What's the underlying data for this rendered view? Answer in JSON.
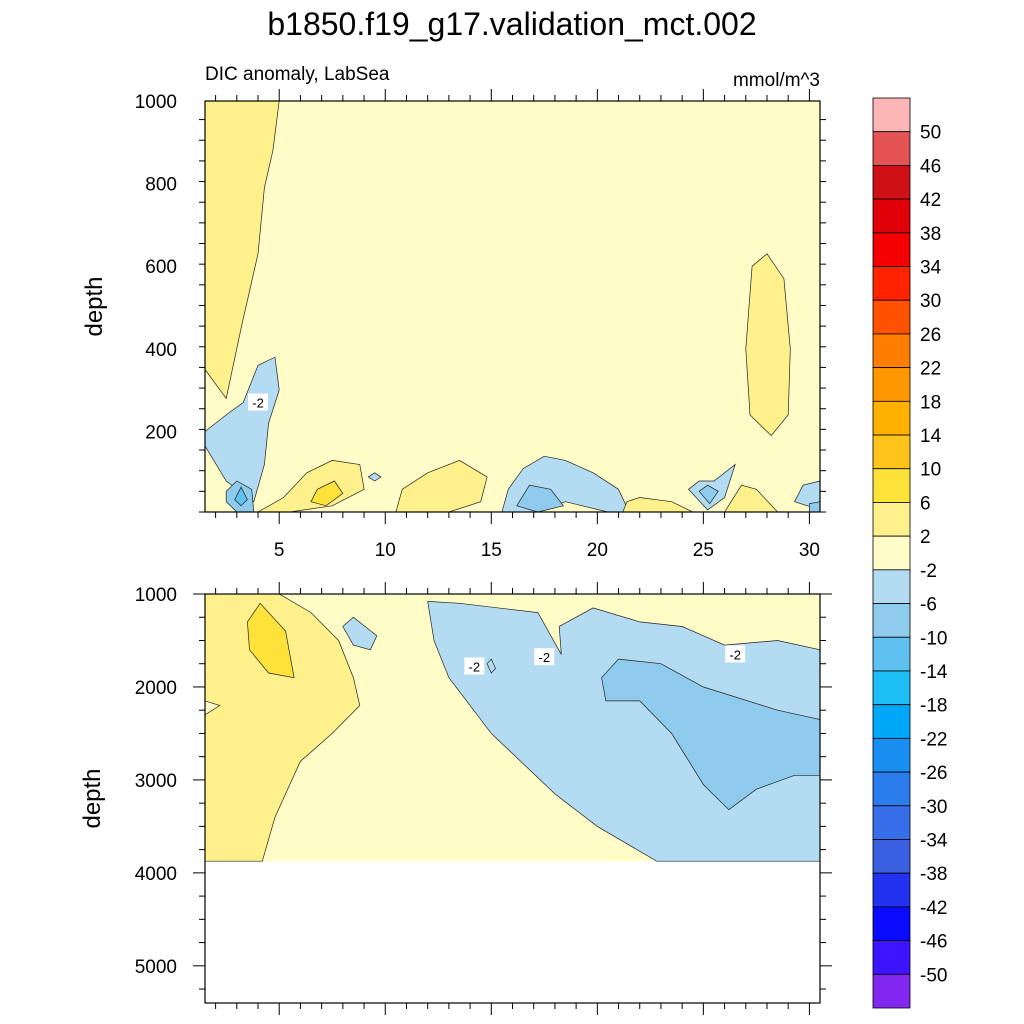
{
  "figure": {
    "title": "b1850.f19_g17.validation_mct.002",
    "subtitle_left": "DIC anomaly, LabSea",
    "subtitle_right": "mmol/m^3"
  },
  "colors": {
    "neg_2": "#b3dbf2",
    "neg_6": "#8fcbec",
    "pos_2": "#fffcc8",
    "pos_6": "#fef08a",
    "pos_10": "#fde23a"
  },
  "chart_data": [
    {
      "type": "contour",
      "panel": "upper",
      "xlabel": "",
      "ylabel": "depth",
      "xlim": [
        1.5,
        30.5
      ],
      "ylim": [
        1000,
        5
      ],
      "xticks": [
        5,
        10,
        15,
        20,
        25,
        30
      ],
      "yticks": [
        200,
        400,
        600,
        800,
        1000
      ],
      "contour_labels": [
        {
          "text": "-2",
          "x": 4,
          "y": 270
        }
      ],
      "background_level": "2",
      "regions": [
        {
          "level": "-2",
          "points": [
            [
              1.5,
              165
            ],
            [
              2.5,
              80
            ],
            [
              3.8,
              30
            ],
            [
              4.3,
              120
            ],
            [
              4.5,
              220
            ],
            [
              5.0,
              300
            ],
            [
              4.8,
              380
            ],
            [
              4.0,
              360
            ],
            [
              3.3,
              270
            ],
            [
              2.5,
              240
            ],
            [
              1.5,
              200
            ]
          ]
        },
        {
          "level": "-6",
          "points": [
            [
              2.5,
              30
            ],
            [
              3.0,
              5
            ],
            [
              3.8,
              5
            ],
            [
              3.7,
              60
            ],
            [
              3.0,
              80
            ],
            [
              2.5,
              55
            ]
          ]
        },
        {
          "level": "-10",
          "points": [
            [
              2.9,
              35
            ],
            [
              3.2,
              20
            ],
            [
              3.5,
              35
            ],
            [
              3.2,
              65
            ]
          ]
        },
        {
          "level": "-2",
          "points": [
            [
              15.5,
              5
            ],
            [
              17,
              5
            ],
            [
              18.5,
              30
            ],
            [
              20.5,
              5
            ],
            [
              21.5,
              5
            ],
            [
              21.0,
              60
            ],
            [
              19.8,
              100
            ],
            [
              18.5,
              130
            ],
            [
              17.5,
              140
            ],
            [
              16.5,
              110
            ],
            [
              15.8,
              60
            ]
          ]
        },
        {
          "level": "-6",
          "points": [
            [
              16.2,
              20
            ],
            [
              17.2,
              5
            ],
            [
              18.4,
              20
            ],
            [
              17.8,
              60
            ],
            [
              16.8,
              70
            ]
          ]
        },
        {
          "level": "-2",
          "points": [
            [
              24.3,
              60
            ],
            [
              25.2,
              10
            ],
            [
              26.0,
              40
            ],
            [
              26.5,
              120
            ],
            [
              25.5,
              80
            ],
            [
              24.8,
              80
            ]
          ]
        },
        {
          "level": "-6",
          "points": [
            [
              24.8,
              55
            ],
            [
              25.3,
              25
            ],
            [
              25.7,
              55
            ],
            [
              25.2,
              70
            ]
          ]
        },
        {
          "level": "-2",
          "points": [
            [
              29.3,
              30
            ],
            [
              30.5,
              10
            ],
            [
              30.5,
              80
            ],
            [
              29.7,
              70
            ]
          ]
        },
        {
          "level": "-6",
          "points": [
            [
              30.0,
              5
            ],
            [
              30.5,
              5
            ],
            [
              30.5,
              30
            ],
            [
              30.0,
              25
            ]
          ]
        },
        {
          "level": "-2",
          "points": [
            [
              9.2,
              90
            ],
            [
              9.5,
              80
            ],
            [
              9.8,
              90
            ],
            [
              9.5,
              100
            ]
          ]
        },
        {
          "level": "6",
          "points": [
            [
              4.0,
              5
            ],
            [
              5.5,
              5
            ],
            [
              7.5,
              20
            ],
            [
              9.0,
              60
            ],
            [
              8.8,
              120
            ],
            [
              7.5,
              130
            ],
            [
              6.3,
              100
            ],
            [
              5.2,
              40
            ]
          ]
        },
        {
          "level": "10",
          "points": [
            [
              6.5,
              30
            ],
            [
              7.2,
              20
            ],
            [
              8.0,
              50
            ],
            [
              7.6,
              80
            ],
            [
              6.8,
              60
            ]
          ]
        },
        {
          "level": "6",
          "points": [
            [
              10.5,
              5
            ],
            [
              13,
              5
            ],
            [
              14.5,
              30
            ],
            [
              14.8,
              90
            ],
            [
              13.5,
              130
            ],
            [
              12.0,
              100
            ],
            [
              10.8,
              60
            ]
          ]
        },
        {
          "level": "6",
          "points": [
            [
              21.2,
              5
            ],
            [
              24.5,
              5
            ],
            [
              23.5,
              30
            ],
            [
              22.0,
              40
            ],
            [
              21.4,
              30
            ]
          ]
        },
        {
          "level": "6",
          "points": [
            [
              26.0,
              5
            ],
            [
              28.5,
              5
            ],
            [
              27.5,
              60
            ],
            [
              26.8,
              70
            ]
          ]
        },
        {
          "level": "6",
          "points": [
            [
              27.2,
              240
            ],
            [
              28.2,
              190
            ],
            [
              29.0,
              240
            ],
            [
              29.1,
              400
            ],
            [
              28.8,
              570
            ],
            [
              28.0,
              630
            ],
            [
              27.3,
              600
            ],
            [
              27.0,
              400
            ]
          ]
        },
        {
          "level": "6",
          "points": [
            [
              1.5,
              350
            ],
            [
              2.5,
              280
            ],
            [
              3.2,
              450
            ],
            [
              4.0,
              630
            ],
            [
              4.3,
              790
            ],
            [
              4.7,
              880
            ],
            [
              5.0,
              1000
            ],
            [
              1.5,
              1000
            ]
          ]
        }
      ]
    },
    {
      "type": "contour",
      "panel": "lower",
      "xlabel": "",
      "ylabel": "depth",
      "xlim": [
        1.5,
        30.5
      ],
      "ylim": [
        1000,
        5400
      ],
      "yticks": [
        1000,
        2000,
        3000,
        4000,
        5000
      ],
      "data_max_depth": 3875,
      "contour_labels": [
        {
          "text": "-2",
          "x": 14.2,
          "y": 1780
        },
        {
          "text": "-2",
          "x": 17.5,
          "y": 1680
        },
        {
          "text": "-2",
          "x": 26.5,
          "y": 1650
        }
      ],
      "background_level": "2",
      "regions": [
        {
          "level": "6",
          "points": [
            [
              1.5,
              1000
            ],
            [
              5.0,
              1000
            ],
            [
              6.5,
              1200
            ],
            [
              7.8,
              1500
            ],
            [
              8.5,
              1900
            ],
            [
              8.8,
              2200
            ],
            [
              7.5,
              2500
            ],
            [
              6.0,
              2800
            ],
            [
              4.8,
              3400
            ],
            [
              4.2,
              3875
            ],
            [
              1.5,
              3875
            ],
            [
              1.5,
              2300
            ],
            [
              2.2,
              2200
            ],
            [
              1.5,
              2150
            ]
          ]
        },
        {
          "level": "10",
          "points": [
            [
              3.5,
              1300
            ],
            [
              4.1,
              1100
            ],
            [
              5.3,
              1400
            ],
            [
              5.7,
              1900
            ],
            [
              4.5,
              1850
            ],
            [
              3.6,
              1600
            ]
          ]
        },
        {
          "level": "-2",
          "points": [
            [
              8.0,
              1350
            ],
            [
              8.5,
              1250
            ],
            [
              9.6,
              1450
            ],
            [
              9.3,
              1600
            ],
            [
              8.5,
              1550
            ]
          ]
        },
        {
          "level": "-2",
          "points": [
            [
              12.0,
              1080
            ],
            [
              13.5,
              1100
            ],
            [
              17.2,
              1200
            ],
            [
              18.3,
              1650
            ],
            [
              18.2,
              1350
            ],
            [
              19.8,
              1150
            ],
            [
              22.0,
              1300
            ],
            [
              24.0,
              1350
            ],
            [
              26.0,
              1550
            ],
            [
              28.5,
              1500
            ],
            [
              30.5,
              1600
            ],
            [
              30.5,
              3875
            ],
            [
              22.8,
              3875
            ],
            [
              20.0,
              3500
            ],
            [
              18.0,
              3150
            ],
            [
              15.0,
              2500
            ],
            [
              13.0,
              1900
            ],
            [
              12.3,
              1500
            ]
          ]
        },
        {
          "level": "-6",
          "points": [
            [
              20.2,
              1900
            ],
            [
              21.0,
              1700
            ],
            [
              23.0,
              1750
            ],
            [
              25.0,
              2000
            ],
            [
              28.5,
              2250
            ],
            [
              30.5,
              2350
            ],
            [
              30.5,
              2950
            ],
            [
              29.3,
              2950
            ],
            [
              27.5,
              3100
            ],
            [
              26.2,
              3320
            ],
            [
              25.0,
              3050
            ],
            [
              23.5,
              2500
            ],
            [
              22.0,
              2150
            ],
            [
              20.4,
              2150
            ]
          ]
        },
        {
          "level": "-2",
          "points": [
            [
              14.8,
              1750
            ],
            [
              15.0,
              1700
            ],
            [
              15.2,
              1800
            ],
            [
              15.0,
              1850
            ]
          ]
        }
      ]
    },
    {
      "type": "colorbar",
      "labels": [
        "50",
        "46",
        "42",
        "38",
        "34",
        "30",
        "26",
        "22",
        "18",
        "14",
        "10",
        "6",
        "2",
        "-2",
        "-6",
        "-10",
        "-14",
        "-18",
        "-22",
        "-26",
        "-30",
        "-34",
        "-38",
        "-42",
        "-46",
        "-50"
      ],
      "colors": [
        "#fcb6b5",
        "#e45455",
        "#cf1117",
        "#e00008",
        "#f50000",
        "#ff2300",
        "#ff5100",
        "#ff7d00",
        "#ff9700",
        "#ffb100",
        "#fec41c",
        "#fde23a",
        "#fef08a",
        "#fffcc8",
        "#b3dbf2",
        "#8fcbec",
        "#5fc1f0",
        "#1ebef6",
        "#00a6f8",
        "#1a8ff2",
        "#2b7ced",
        "#356ee8",
        "#3a5fe0",
        "#2332f0",
        "#0a0aff",
        "#3d14ff",
        "#8127f0"
      ]
    }
  ]
}
